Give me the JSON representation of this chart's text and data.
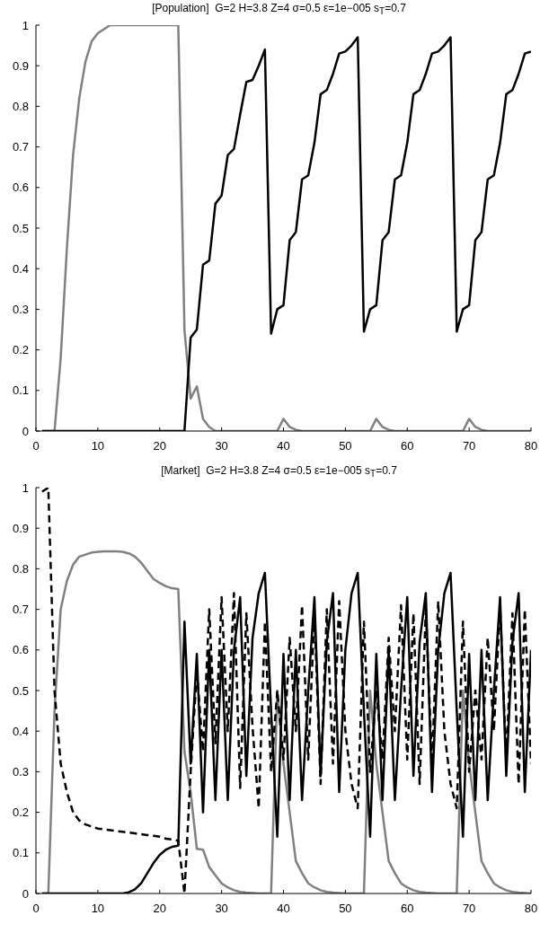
{
  "chart_data": [
    {
      "type": "line",
      "title": "[Population]  G=2 H=3.8 Z=4 σ=0.5 ε=1e−005 s$_{T}$=0.7",
      "x": [
        1,
        2,
        3,
        4,
        5,
        6,
        7,
        8,
        9,
        10,
        11,
        12,
        13,
        14,
        15,
        16,
        17,
        18,
        19,
        20,
        21,
        22,
        23,
        24,
        25,
        26,
        27,
        28,
        29,
        30,
        31,
        32,
        33,
        34,
        35,
        36,
        37,
        38,
        39,
        40,
        41,
        42,
        43,
        44,
        45,
        46,
        47,
        48,
        49,
        50,
        51,
        52,
        53,
        54,
        55,
        56,
        57,
        58,
        59,
        60,
        61,
        62,
        63,
        64,
        65,
        66,
        67,
        68,
        69,
        70,
        71,
        72,
        73,
        74,
        75,
        76,
        77,
        78,
        79,
        80
      ],
      "series": [
        {
          "color": "#808080",
          "values": [
            0,
            0,
            0,
            0.18,
            0.45,
            0.68,
            0.82,
            0.91,
            0.96,
            0.98,
            0.99,
            1,
            1,
            1,
            1,
            1,
            1,
            1,
            1,
            1,
            1,
            1,
            1,
            0.25,
            0.08,
            0.11,
            0.03,
            0.01,
            0,
            0,
            0,
            0,
            0,
            0,
            0,
            0,
            0,
            0,
            0,
            0.03,
            0.01,
            0.003,
            0,
            0,
            0,
            0,
            0,
            0,
            0,
            0,
            0,
            0,
            0,
            0,
            0.03,
            0.01,
            0.003,
            0,
            0,
            0,
            0,
            0,
            0,
            0,
            0,
            0,
            0,
            0,
            0,
            0.03,
            0.01,
            0.003,
            0,
            0,
            0,
            0,
            0,
            0,
            0,
            0
          ]
        },
        {
          "color": "#000000",
          "values": [
            0,
            0,
            0,
            0,
            0,
            0,
            0,
            0,
            0,
            0,
            0,
            0,
            0,
            0,
            0,
            0,
            0,
            0,
            0,
            0,
            0,
            0,
            0,
            0,
            0.23,
            0.25,
            0.41,
            0.42,
            0.56,
            0.58,
            0.68,
            0.695,
            0.78,
            0.86,
            0.865,
            0.9,
            0.94,
            0.24,
            0.3,
            0.31,
            0.47,
            0.49,
            0.62,
            0.63,
            0.71,
            0.83,
            0.84,
            0.88,
            0.93,
            0.935,
            0.95,
            0.97,
            0.245,
            0.3,
            0.31,
            0.47,
            0.49,
            0.62,
            0.63,
            0.71,
            0.83,
            0.84,
            0.88,
            0.93,
            0.935,
            0.95,
            0.97,
            0.245,
            0.3,
            0.31,
            0.47,
            0.49,
            0.62,
            0.63,
            0.71,
            0.83,
            0.84,
            0.88,
            0.93,
            0.935
          ]
        }
      ],
      "xlim": [
        0,
        80
      ],
      "xticks": [
        0,
        10,
        20,
        30,
        40,
        50,
        60,
        70,
        80
      ],
      "ylim": [
        0,
        1
      ],
      "yticks": [
        0,
        0.1,
        0.2,
        0.3,
        0.4,
        0.5,
        0.6,
        0.7,
        0.8,
        0.9,
        1
      ],
      "grid": false,
      "marker": "none",
      "line_style": "solid"
    },
    {
      "type": "line",
      "title": "[Market]  G=2 H=3.8 Z=4 σ=0.5 ε=1e−005 s$_{T}$=0.7",
      "x": [
        1,
        2,
        3,
        4,
        5,
        6,
        7,
        8,
        9,
        10,
        11,
        12,
        13,
        14,
        15,
        16,
        17,
        18,
        19,
        20,
        21,
        22,
        23,
        24,
        25,
        26,
        27,
        28,
        29,
        30,
        31,
        32,
        33,
        34,
        35,
        36,
        37,
        38,
        39,
        40,
        41,
        42,
        43,
        44,
        45,
        46,
        47,
        48,
        49,
        50,
        51,
        52,
        53,
        54,
        55,
        56,
        57,
        58,
        59,
        60,
        61,
        62,
        63,
        64,
        65,
        66,
        67,
        68,
        69,
        70,
        71,
        72,
        73,
        74,
        75,
        76,
        77,
        78,
        79,
        80
      ],
      "series": [
        {
          "color": "#808080",
          "line_style": "solid",
          "values": [
            0,
            0,
            0.45,
            0.7,
            0.77,
            0.81,
            0.83,
            0.835,
            0.84,
            0.842,
            0.843,
            0.843,
            0.843,
            0.842,
            0.838,
            0.83,
            0.815,
            0.795,
            0.775,
            0.765,
            0.757,
            0.752,
            0.75,
            0.35,
            0.25,
            0.11,
            0.108,
            0.065,
            0.045,
            0.025,
            0.015,
            0.008,
            0.004,
            0.002,
            0.001,
            0,
            0,
            0,
            0.5,
            0.32,
            0.2,
            0.08,
            0.05,
            0.025,
            0.015,
            0.008,
            0.004,
            0.002,
            0.001,
            0,
            0,
            0,
            0,
            0.5,
            0.32,
            0.2,
            0.08,
            0.05,
            0.025,
            0.015,
            0.008,
            0.004,
            0.002,
            0.001,
            0,
            0,
            0,
            0,
            0.5,
            0.32,
            0.2,
            0.08,
            0.05,
            0.025,
            0.015,
            0.008,
            0.004,
            0.002,
            0.001,
            0
          ]
        },
        {
          "color": "#000000",
          "line_style": "solid",
          "values": [
            0,
            0,
            0,
            0,
            0,
            0,
            0,
            0,
            0,
            0,
            0,
            0,
            0,
            0,
            0.003,
            0.01,
            0.025,
            0.05,
            0.075,
            0.095,
            0.108,
            0.115,
            0.118,
            0.67,
            0.32,
            0.59,
            0.2,
            0.6,
            0.23,
            0.6,
            0.23,
            0.6,
            0.73,
            0.29,
            0.63,
            0.74,
            0.79,
            0.45,
            0.14,
            0.59,
            0.23,
            0.6,
            0.23,
            0.5,
            0.73,
            0.29,
            0.62,
            0.74,
            0.25,
            0.6,
            0.74,
            0.79,
            0.45,
            0.14,
            0.59,
            0.23,
            0.6,
            0.23,
            0.5,
            0.73,
            0.29,
            0.62,
            0.74,
            0.25,
            0.6,
            0.74,
            0.79,
            0.45,
            0.14,
            0.59,
            0.23,
            0.6,
            0.23,
            0.5,
            0.73,
            0.29,
            0.62,
            0.74,
            0.25,
            0.6
          ]
        },
        {
          "color": "#000000",
          "line_style": "dashed",
          "values": [
            0.99,
            1,
            0.5,
            0.32,
            0.25,
            0.2,
            0.18,
            0.17,
            0.165,
            0.16,
            0.158,
            0.156,
            0.154,
            0.152,
            0.15,
            0.148,
            0.146,
            0.144,
            0.142,
            0.14,
            0.135,
            0.133,
            0.13,
            0,
            0.3,
            0.55,
            0.35,
            0.7,
            0.37,
            0.73,
            0.4,
            0.74,
            0.26,
            0.69,
            0.41,
            0.21,
            0.67,
            0.3,
            0.5,
            0.33,
            0.63,
            0.4,
            0.71,
            0.33,
            0.69,
            0.27,
            0.7,
            0.32,
            0.72,
            0.4,
            0.27,
            0.21,
            0.67,
            0.3,
            0.5,
            0.33,
            0.63,
            0.4,
            0.71,
            0.33,
            0.69,
            0.27,
            0.7,
            0.32,
            0.72,
            0.4,
            0.27,
            0.21,
            0.67,
            0.3,
            0.5,
            0.33,
            0.63,
            0.4,
            0.71,
            0.33,
            0.69,
            0.27,
            0.7,
            0.32
          ]
        }
      ],
      "xlim": [
        0,
        80
      ],
      "xticks": [
        0,
        10,
        20,
        30,
        40,
        50,
        60,
        70,
        80
      ],
      "ylim": [
        0,
        1
      ],
      "yticks": [
        0,
        0.1,
        0.2,
        0.3,
        0.4,
        0.5,
        0.6,
        0.7,
        0.8,
        0.9,
        1
      ],
      "grid": false,
      "marker": "none"
    }
  ]
}
